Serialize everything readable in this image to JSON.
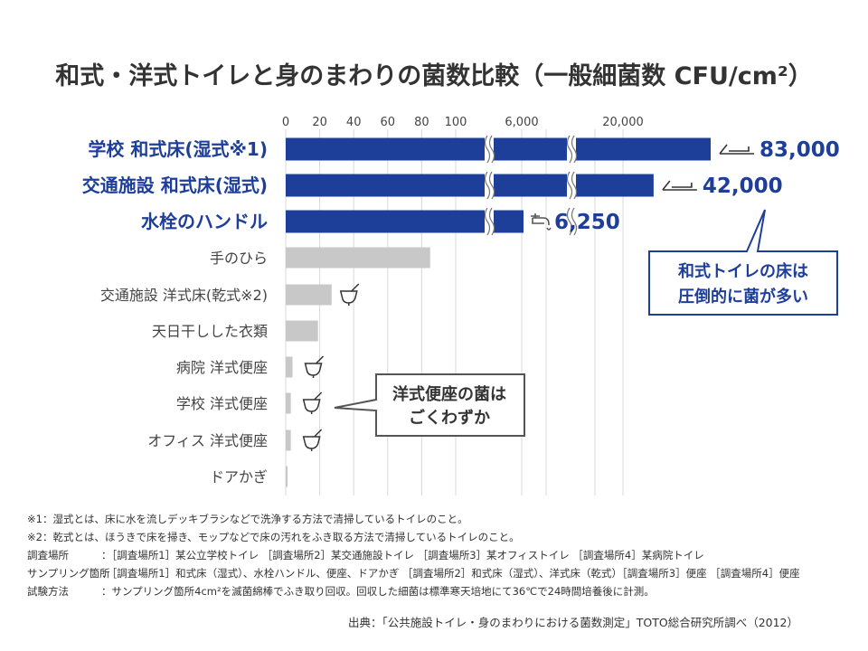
{
  "title": "和式・洋式トイレと身のまわりの菌数比較（一般細菌数 CFU/cm²）",
  "chart_data": {
    "type": "bar",
    "orientation": "horizontal",
    "title": "和式・洋式トイレと身のまわりの菌数比較（一般細菌数 CFU/cm²）",
    "x_ticks": [
      "0",
      "20",
      "40",
      "60",
      "80",
      "100",
      "6,000",
      "20,000"
    ],
    "axis_breaks": true,
    "grid": true,
    "categories": [
      "学校 和式床(湿式※1)",
      "交通施設 和式床(湿式)",
      "水栓のハンドル",
      "手のひら",
      "交通施設 洋式床(乾式※2)",
      "天日干しした衣類",
      "病院 洋式便座",
      "学校 洋式便座",
      "オフィス 洋式便座",
      "ドアかぎ"
    ],
    "values": [
      83000,
      42000,
      6250,
      85,
      27,
      19,
      4,
      3,
      3,
      1
    ],
    "value_labels": [
      "83,000",
      "42,000",
      "6,250",
      "",
      "",
      "",
      "",
      "",
      "",
      ""
    ],
    "highlight_color": "#1e3f99",
    "normal_color": "#c8c8c8",
    "icons": [
      "squat-toilet-icon",
      "squat-toilet-icon",
      "faucet-icon",
      "",
      "toilet-icon",
      "",
      "toilet-icon",
      "toilet-icon",
      "toilet-icon",
      ""
    ]
  },
  "callouts": {
    "squat": [
      "和式トイレの床は",
      "圧倒的に菌が多い"
    ],
    "western": [
      "洋式便座の菌は",
      "ごくわずか"
    ]
  },
  "notes": {
    "note1": "※1：湿式とは、床に水を流しデッキブラシなどで洗浄する方法で清掃しているトイレのこと。",
    "note2": "※2：乾式とは、ほうきで床を掃き、モップなどで床の汚れをふき取る方法で清掃しているトイレのこと。",
    "survey_label": "調査場所",
    "survey_text": "：［調査場所1］某公立学校トイレ ［調査場所2］某交通施設トイレ ［調査場所3］某オフィストイレ ［調査場所4］某病院トイレ",
    "sampling_label": "サンプリング箇所",
    "sampling_text": "：［調査場所1］和式床（湿式）、水栓ハンドル、便座、ドアかぎ ［調査場所2］和式床（湿式）、洋式床（乾式）［調査場所3］便座 ［調査場所4］便座",
    "method_label": "試験方法",
    "method_text": "：サンプリング箇所4cm²を滅菌綿棒でふき取り回収。回収した細菌は標準寒天培地にて36℃で24時間培養後に計測。"
  },
  "source": "出典：「公共施設トイレ・身のまわりにおける菌数測定」TOTO総合研究所調べ（2012）"
}
